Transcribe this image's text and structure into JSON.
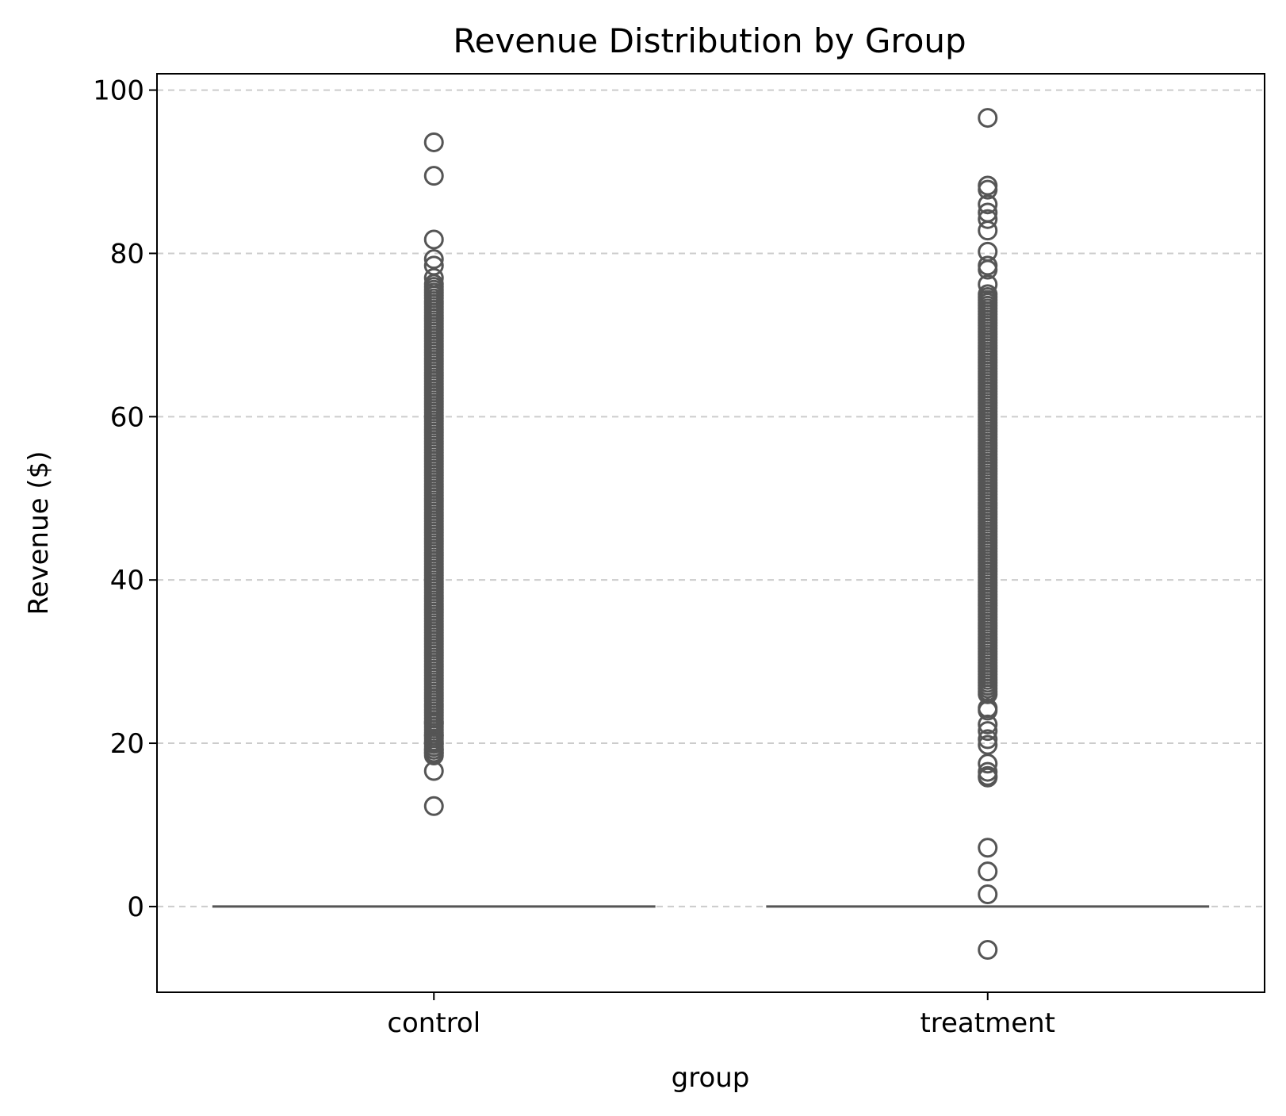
{
  "chart_data": {
    "type": "box",
    "title": "Revenue Distribution by Group",
    "xlabel": "group",
    "ylabel": "Revenue ($)",
    "ylim": [
      -10.5,
      102
    ],
    "yticks": [
      0,
      20,
      40,
      60,
      80,
      100
    ],
    "grid": "y-dashed",
    "categories": [
      "control",
      "treatment"
    ],
    "colors": {
      "box": "#555555",
      "grid": "#cccccc"
    },
    "boxes": [
      {
        "category": "control",
        "q1": 0,
        "median": 0,
        "q3": 0,
        "whisker_low": 0,
        "whisker_high": 0,
        "outlier_dense_range": [
          18.5,
          76.5
        ],
        "outliers": [
          93.6,
          89.5,
          81.7,
          79.3,
          78.5,
          77.0,
          22.5,
          21.0,
          20.0,
          19.2,
          18.8,
          16.6,
          12.3
        ]
      },
      {
        "category": "treatment",
        "q1": 0,
        "median": 0,
        "q3": 0,
        "whisker_low": 0,
        "whisker_high": 0,
        "outlier_dense_range": [
          26.0,
          75.0
        ],
        "outliers": [
          96.6,
          88.3,
          87.8,
          86.0,
          85.0,
          84.2,
          82.8,
          80.2,
          78.5,
          78.0,
          76.2,
          24.3,
          24.0,
          22.3,
          21.5,
          20.5,
          19.8,
          17.5,
          16.5,
          16.0,
          15.8,
          7.2,
          4.3,
          1.5,
          -5.3
        ]
      }
    ]
  }
}
